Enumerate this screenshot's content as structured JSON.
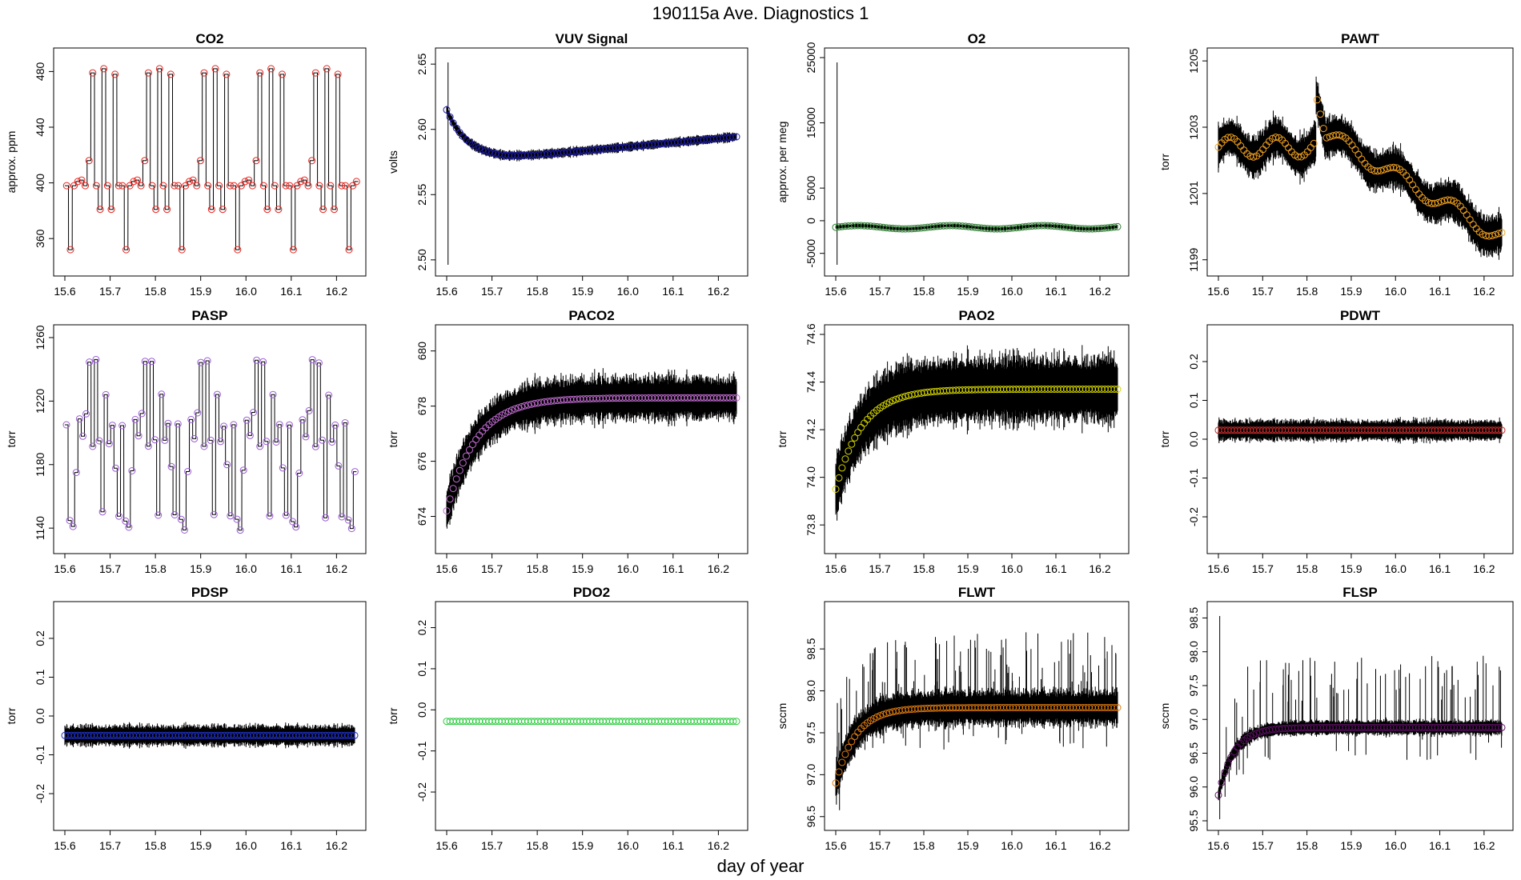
{
  "page_title": "190115a   Ave. Diagnostics 1",
  "x_axis_label": "day of year",
  "chart_data": [
    {
      "type": "line",
      "title": "CO2",
      "ylabel": "approx. ppm",
      "xlim": [
        15.6,
        16.24
      ],
      "ylim": [
        340,
        490
      ],
      "xticks": [
        15.6,
        15.7,
        15.8,
        15.9,
        16.0,
        16.1,
        16.2
      ],
      "xtick_labels": [
        "15.6",
        "15.7",
        "15.8",
        "15.9",
        "16.0",
        "16.1",
        "16.2"
      ],
      "yticks": [
        360,
        400,
        440,
        480
      ],
      "ytick_labels": [
        "360",
        "400",
        "440",
        "480"
      ],
      "marker_color": "#e8241f",
      "pattern": "co2",
      "mean": 400,
      "noise": 0
    },
    {
      "type": "line",
      "title": "VUV Signal",
      "ylabel": "volts",
      "xlim": [
        15.6,
        16.24
      ],
      "ylim": [
        2.495,
        2.655
      ],
      "xticks": [
        15.6,
        15.7,
        15.8,
        15.9,
        16.0,
        16.1,
        16.2
      ],
      "xtick_labels": [
        "15.6",
        "15.7",
        "15.8",
        "15.9",
        "16.0",
        "16.1",
        "16.2"
      ],
      "yticks": [
        2.5,
        2.55,
        2.6,
        2.65
      ],
      "ytick_labels": [
        "2.50",
        "2.55",
        "2.60",
        "2.65"
      ],
      "marker_color": "#1f1fa8",
      "pattern": "vuv",
      "noise": 0.002
    },
    {
      "type": "line",
      "title": "O2",
      "ylabel": "approx. per meg",
      "xlim": [
        15.6,
        16.24
      ],
      "ylim": [
        -7000,
        25000
      ],
      "xticks": [
        15.6,
        15.7,
        15.8,
        15.9,
        16.0,
        16.1,
        16.2
      ],
      "xtick_labels": [
        "15.6",
        "15.7",
        "15.8",
        "15.9",
        "16.0",
        "16.1",
        "16.2"
      ],
      "yticks": [
        -5000,
        0,
        5000,
        15000,
        25000
      ],
      "ytick_labels": [
        "-5000",
        "0",
        "5000",
        "15000",
        "25000"
      ],
      "marker_color": "#2e7d32",
      "pattern": "o2",
      "mean": -1000,
      "noise": 150
    },
    {
      "type": "line",
      "title": "PAWT",
      "ylabel": "torr",
      "xlim": [
        15.6,
        16.24
      ],
      "ylim": [
        1198.8,
        1205.1
      ],
      "xticks": [
        15.6,
        15.7,
        15.8,
        15.9,
        16.0,
        16.1,
        16.2
      ],
      "xtick_labels": [
        "15.6",
        "15.7",
        "15.8",
        "15.9",
        "16.0",
        "16.1",
        "16.2"
      ],
      "yticks": [
        1199,
        1201,
        1203,
        1205
      ],
      "ytick_labels": [
        "1199",
        "1201",
        "1203",
        "1205"
      ],
      "marker_color": "#f0a020",
      "pattern": "pawt",
      "noise": 0.35
    },
    {
      "type": "line",
      "title": "PASP",
      "ylabel": "torr",
      "xlim": [
        15.6,
        16.24
      ],
      "ylim": [
        1130,
        1262
      ],
      "xticks": [
        15.6,
        15.7,
        15.8,
        15.9,
        16.0,
        16.1,
        16.2
      ],
      "xtick_labels": [
        "15.6",
        "15.7",
        "15.8",
        "15.9",
        "16.0",
        "16.1",
        "16.2"
      ],
      "yticks": [
        1140,
        1180,
        1220,
        1260
      ],
      "ytick_labels": [
        "1140",
        "1180",
        "1220",
        "1260"
      ],
      "marker_color": "#9a5cd6",
      "pattern": "pasp",
      "noise": 3
    },
    {
      "type": "line",
      "title": "PACO2",
      "ylabel": "torr",
      "xlim": [
        15.6,
        16.24
      ],
      "ylim": [
        673,
        680.6
      ],
      "xticks": [
        15.6,
        15.7,
        15.8,
        15.9,
        16.0,
        16.1,
        16.2
      ],
      "xtick_labels": [
        "15.6",
        "15.7",
        "15.8",
        "15.9",
        "16.0",
        "16.1",
        "16.2"
      ],
      "yticks": [
        674,
        676,
        678,
        680
      ],
      "ytick_labels": [
        "674",
        "676",
        "678",
        "680"
      ],
      "marker_color": "#c06bd0",
      "pattern": "paco2",
      "noise": 0.45
    },
    {
      "type": "line",
      "title": "PAO2",
      "ylabel": "torr",
      "xlim": [
        15.6,
        16.24
      ],
      "ylim": [
        73.72,
        74.6
      ],
      "xticks": [
        15.6,
        15.7,
        15.8,
        15.9,
        16.0,
        16.1,
        16.2
      ],
      "xtick_labels": [
        "15.6",
        "15.7",
        "15.8",
        "15.9",
        "16.0",
        "16.1",
        "16.2"
      ],
      "yticks": [
        73.8,
        74.0,
        74.2,
        74.4,
        74.6
      ],
      "ytick_labels": [
        "73.8",
        "74.0",
        "74.2",
        "74.4",
        "74.6"
      ],
      "marker_color": "#d4d400",
      "pattern": "pao2",
      "noise": 0.08
    },
    {
      "type": "line",
      "title": "PDWT",
      "ylabel": "torr",
      "xlim": [
        15.6,
        16.24
      ],
      "ylim": [
        -0.27,
        0.27
      ],
      "xticks": [
        15.6,
        15.7,
        15.8,
        15.9,
        16.0,
        16.1,
        16.2
      ],
      "xtick_labels": [
        "15.6",
        "15.7",
        "15.8",
        "15.9",
        "16.0",
        "16.1",
        "16.2"
      ],
      "yticks": [
        -0.2,
        -0.1,
        0.0,
        0.1,
        0.2
      ],
      "ytick_labels": [
        "-0.2",
        "-0.1",
        "0.0",
        "0.1",
        "0.2"
      ],
      "marker_color": "#c62828",
      "pattern": "flat",
      "mean": 0.023,
      "noise": 0.015
    },
    {
      "type": "line",
      "title": "PDSP",
      "ylabel": "torr",
      "xlim": [
        15.6,
        16.24
      ],
      "ylim": [
        -0.27,
        0.27
      ],
      "xticks": [
        15.6,
        15.7,
        15.8,
        15.9,
        16.0,
        16.1,
        16.2
      ],
      "xtick_labels": [
        "15.6",
        "15.7",
        "15.8",
        "15.9",
        "16.0",
        "16.1",
        "16.2"
      ],
      "yticks": [
        -0.2,
        -0.1,
        0.0,
        0.1,
        0.2
      ],
      "ytick_labels": [
        "-0.2",
        "-0.1",
        "0.0",
        "0.1",
        "0.2"
      ],
      "marker_color": "#2030c0",
      "pattern": "flat",
      "mean": -0.05,
      "noise": 0.015
    },
    {
      "type": "line",
      "title": "PDO2",
      "ylabel": "torr",
      "xlim": [
        15.6,
        16.24
      ],
      "ylim": [
        -0.27,
        0.24
      ],
      "xticks": [
        15.6,
        15.7,
        15.8,
        15.9,
        16.0,
        16.1,
        16.2
      ],
      "xtick_labels": [
        "15.6",
        "15.7",
        "15.8",
        "15.9",
        "16.0",
        "16.1",
        "16.2"
      ],
      "yticks": [
        -0.2,
        -0.1,
        0.0,
        0.1,
        0.2
      ],
      "ytick_labels": [
        "-0.2",
        "-0.1",
        "0.0",
        "0.1",
        "0.2"
      ],
      "marker_color": "#2ecc40",
      "pattern": "flat",
      "mean": -0.028,
      "noise": 0
    },
    {
      "type": "line",
      "title": "FLWT",
      "ylabel": "sccm",
      "xlim": [
        15.6,
        16.24
      ],
      "ylim": [
        96.45,
        98.95
      ],
      "xticks": [
        15.6,
        15.7,
        15.8,
        15.9,
        16.0,
        16.1,
        16.2
      ],
      "xtick_labels": [
        "15.6",
        "15.7",
        "15.8",
        "15.9",
        "16.0",
        "16.1",
        "16.2"
      ],
      "yticks": [
        96.5,
        97.0,
        97.5,
        98.0,
        98.5
      ],
      "ytick_labels": [
        "96.5",
        "97.0",
        "97.5",
        "98.0",
        "98.5"
      ],
      "marker_color": "#e07b10",
      "pattern": "flwt",
      "noise": 0.12
    },
    {
      "type": "line",
      "title": "FLSP",
      "ylabel": "sccm",
      "xlim": [
        15.6,
        16.24
      ],
      "ylim": [
        95.5,
        98.6
      ],
      "xticks": [
        15.6,
        15.7,
        15.8,
        15.9,
        16.0,
        16.1,
        16.2
      ],
      "xtick_labels": [
        "15.6",
        "15.7",
        "15.8",
        "15.9",
        "16.0",
        "16.1",
        "16.2"
      ],
      "yticks": [
        95.5,
        96.0,
        96.5,
        97.0,
        97.5,
        98.0,
        98.5
      ],
      "ytick_labels": [
        "95.5",
        "96.0",
        "96.5",
        "97.0",
        "97.5",
        "98.0",
        "98.5"
      ],
      "marker_color": "#5a1060",
      "pattern": "flsp",
      "noise": 0.06
    }
  ]
}
